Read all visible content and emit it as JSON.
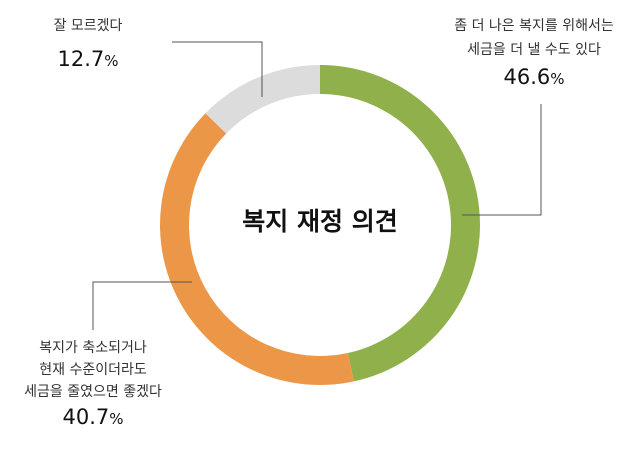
{
  "chart_data": {
    "type": "pie",
    "variant": "donut",
    "title": "복지 재정 의견",
    "start_angle_deg": 0,
    "direction": "clockwise",
    "slices": [
      {
        "label_lines": [
          "좀 더 나은 복지를 위해서는",
          "세금을 더 낼 수도 있다"
        ],
        "value": 46.6,
        "value_text": "46.6",
        "unit": "%",
        "color": "#8FB04A"
      },
      {
        "label_lines": [
          "복지가 축소되거나",
          "현재 수준이더라도",
          "세금을 줄였으면 좋겠다"
        ],
        "value": 40.7,
        "value_text": "40.7",
        "unit": "%",
        "color": "#EB9747"
      },
      {
        "label_lines": [
          "잘 모르겠다"
        ],
        "value": 12.7,
        "value_text": "12.7",
        "unit": "%",
        "color": "#DCDCDC"
      }
    ]
  }
}
